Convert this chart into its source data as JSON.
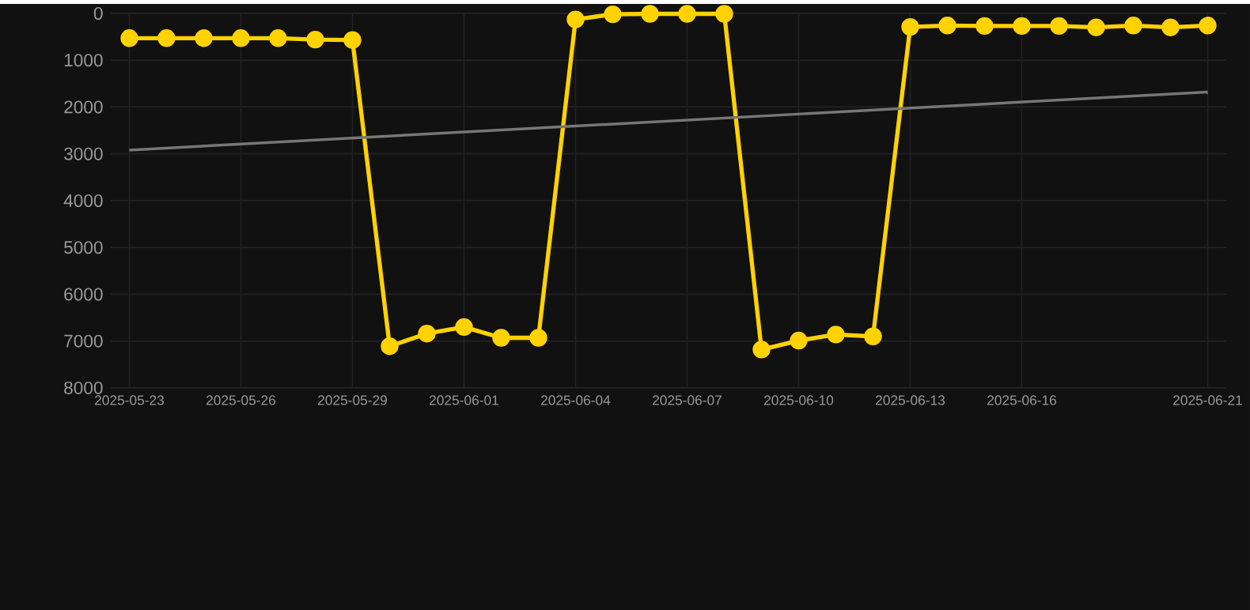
{
  "chart_data": {
    "type": "line",
    "grid": true,
    "marker": "circle",
    "line_style": "solid",
    "legend": false,
    "x": [
      "2025-05-23",
      "2025-05-24",
      "2025-05-25",
      "2025-05-26",
      "2025-05-27",
      "2025-05-28",
      "2025-05-29",
      "2025-05-30",
      "2025-05-31",
      "2025-06-01",
      "2025-06-02",
      "2025-06-03",
      "2025-06-04",
      "2025-06-05",
      "2025-06-06",
      "2025-06-07",
      "2025-06-08",
      "2025-06-09",
      "2025-06-10",
      "2025-06-11",
      "2025-06-12",
      "2025-06-13",
      "2025-06-14",
      "2025-06-15",
      "2025-06-16",
      "2025-06-17",
      "2025-06-18",
      "2025-06-19",
      "2025-06-20",
      "2025-06-21"
    ],
    "series": [
      {
        "color": "#ffd200",
        "values": [
          530,
          530,
          530,
          530,
          530,
          560,
          570,
          7110,
          6840,
          6700,
          6930,
          6930,
          130,
          20,
          10,
          10,
          10,
          7180,
          6990,
          6860,
          6900,
          290,
          260,
          270,
          270,
          270,
          300,
          260,
          300,
          260
        ]
      },
      {
        "type": "line",
        "color": "#777777",
        "marker": "none",
        "x": [
          "2025-05-23",
          "2025-06-21"
        ],
        "values": [
          2920,
          1680
        ]
      }
    ],
    "xlim": [
      "2025-05-22T12:00",
      "2025-06-21T12:00"
    ],
    "xticks": [
      "2025-05-23",
      "2025-05-26",
      "2025-05-29",
      "2025-06-01",
      "2025-06-04",
      "2025-06-07",
      "2025-06-10",
      "2025-06-13",
      "2025-06-16",
      "2025-06-21"
    ],
    "ylim": [
      8000,
      0
    ],
    "yticks": [
      0,
      1000,
      2000,
      3000,
      4000,
      5000,
      6000,
      7000,
      8000
    ]
  }
}
